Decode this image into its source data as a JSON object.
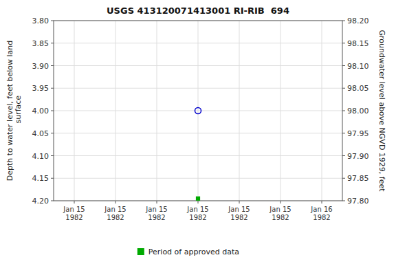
{
  "chart_data": {
    "type": "scatter",
    "title": "USGS 413120071413001 RI-RIB  694",
    "y_label": "Depth to water level, feet below land\n surface",
    "y2_label": "Groundwater level above NGVD 1929, feet",
    "categories": [
      "Jan 15\n1982",
      "Jan 15\n1982",
      "Jan 15\n1982",
      "Jan 15\n1982",
      "Jan 15\n1982",
      "Jan 15\n1982",
      "Jan 16\n1982"
    ],
    "series": [
      {
        "color": "#0000cc",
        "marker": "circle",
        "values": [
          null,
          null,
          null,
          4.0,
          null,
          null,
          null
        ]
      },
      {
        "name": "Period of approved data",
        "color": "#00aa00",
        "marker": "square",
        "values": [
          null,
          null,
          null,
          4.195,
          null,
          null,
          null
        ]
      }
    ],
    "ylim": [
      4.2,
      3.8
    ],
    "yticks": [
      {
        "value": 3.8,
        "label": "3.80"
      },
      {
        "value": 3.85,
        "label": "3.85"
      },
      {
        "value": 3.9,
        "label": "3.90"
      },
      {
        "value": 3.95,
        "label": "3.95"
      },
      {
        "value": 4,
        "label": "4.00"
      },
      {
        "value": 4.05,
        "label": "4.05"
      },
      {
        "value": 4.1,
        "label": "4.10"
      },
      {
        "value": 4.15,
        "label": "4.15"
      },
      {
        "value": 4.2,
        "label": "4.20"
      }
    ],
    "y2lim": [
      97.8,
      98.2
    ],
    "y2ticks": [
      {
        "value": 97.8,
        "label": "97.80"
      },
      {
        "value": 97.85,
        "label": "97.85"
      },
      {
        "value": 97.9,
        "label": "97.90"
      },
      {
        "value": 97.95,
        "label": "97.95"
      },
      {
        "value": 98,
        "label": "98.00"
      },
      {
        "value": 98.05,
        "label": "98.05"
      },
      {
        "value": 98.1,
        "label": "98.10"
      },
      {
        "value": 98.15,
        "label": "98.15"
      },
      {
        "value": 98.2,
        "label": "98.20"
      }
    ],
    "grid": true,
    "legend": "bottom"
  }
}
